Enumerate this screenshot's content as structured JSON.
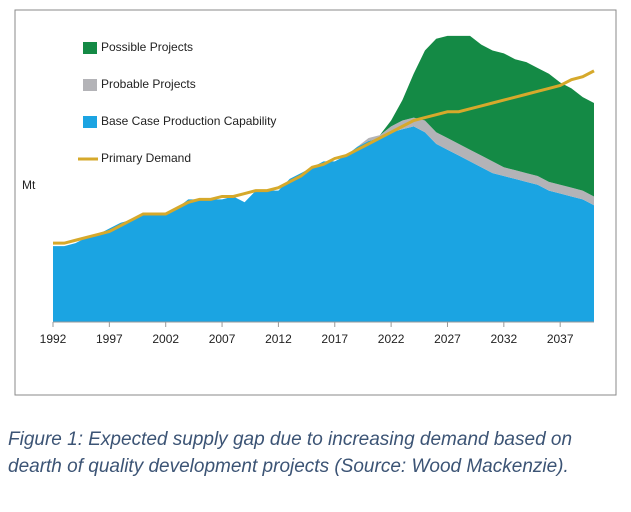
{
  "chart_data": {
    "type": "area",
    "stacked": true,
    "y_label": "Mt",
    "x": [
      1992,
      1993,
      1994,
      1995,
      1996,
      1997,
      1998,
      1999,
      2000,
      2001,
      2002,
      2003,
      2004,
      2005,
      2006,
      2007,
      2008,
      2009,
      2010,
      2011,
      2012,
      2013,
      2014,
      2015,
      2016,
      2017,
      2018,
      2019,
      2020,
      2021,
      2022,
      2023,
      2024,
      2025,
      2026,
      2027,
      2028,
      2029,
      2030,
      2031,
      2032,
      2033,
      2034,
      2035,
      2036,
      2037,
      2038,
      2039,
      2040
    ],
    "xlim": [
      1992,
      2040
    ],
    "xticks": [
      1992,
      1997,
      2002,
      2007,
      2012,
      2017,
      2022,
      2027,
      2032,
      2037
    ],
    "ylim": [
      0,
      100
    ],
    "series": [
      {
        "name": "Base Case Production Capability",
        "color": "#1ba4e2",
        "type": "area",
        "values": [
          26,
          26,
          27,
          29,
          30,
          32,
          34,
          35,
          37,
          37,
          37,
          39,
          42,
          42,
          42,
          42,
          43,
          41,
          45,
          45,
          45,
          49,
          51,
          53,
          55,
          55,
          57,
          60,
          62,
          63,
          65,
          66,
          67,
          65,
          61,
          59,
          57,
          55,
          53,
          51,
          50,
          49,
          48,
          47,
          45,
          44,
          43,
          42,
          40
        ]
      },
      {
        "name": "Probable Projects",
        "color": "#b3b3b7",
        "type": "area",
        "values": [
          0,
          0,
          0,
          0,
          0,
          0,
          0,
          0,
          0,
          0,
          0,
          0,
          0,
          0,
          0,
          0,
          0,
          0,
          0,
          0,
          0,
          0,
          0,
          0,
          0,
          0,
          0,
          0,
          1,
          1,
          2,
          3,
          3,
          4,
          4,
          4,
          4,
          4,
          4,
          4,
          3,
          3,
          3,
          3,
          3,
          3,
          3,
          3,
          3
        ]
      },
      {
        "name": "Possible Projects",
        "color": "#148a45",
        "type": "area",
        "values": [
          0,
          0,
          0,
          0,
          0,
          0,
          0,
          0,
          0,
          0,
          0,
          0,
          0,
          0,
          0,
          0,
          0,
          0,
          0,
          0,
          0,
          0,
          0,
          0,
          0,
          0,
          0,
          0,
          0,
          0,
          2,
          7,
          15,
          24,
          32,
          35,
          37,
          39,
          38,
          38,
          39,
          38,
          38,
          37,
          37,
          35,
          34,
          32,
          32
        ]
      },
      {
        "name": "Primary Demand",
        "color": "#d6a92b",
        "type": "line",
        "values": [
          27,
          27,
          28,
          29,
          30,
          31,
          33,
          35,
          37,
          37,
          37,
          39,
          41,
          42,
          42,
          43,
          43,
          44,
          45,
          45,
          46,
          48,
          50,
          53,
          54,
          56,
          57,
          59,
          61,
          63,
          65,
          67,
          69,
          70,
          71,
          72,
          72,
          73,
          74,
          75,
          76,
          77,
          78,
          79,
          80,
          81,
          83,
          84,
          86
        ]
      }
    ],
    "caption": "Figure 1: Expected supply gap due to increasing demand based on dearth of quality development projects (Source: Wood Mackenzie)."
  }
}
